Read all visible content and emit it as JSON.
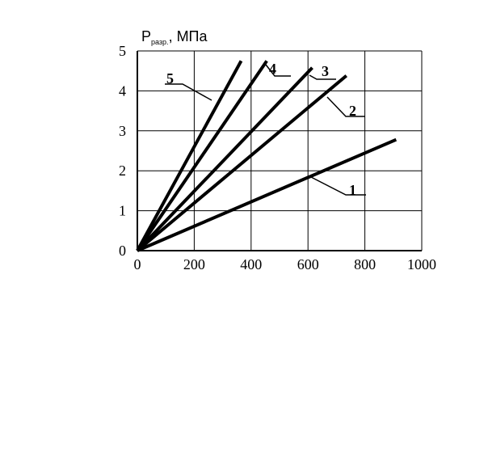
{
  "chart_data": {
    "type": "line",
    "title": "",
    "ylabel": {
      "main": "P",
      "subscript": "разр.",
      "unit": ", МПа"
    },
    "xlabel": "",
    "xlim": [
      0,
      1000
    ],
    "ylim": [
      0,
      5
    ],
    "grid": true,
    "x_ticks": [
      "0",
      "200",
      "400",
      "600",
      "800",
      "1000"
    ],
    "y_ticks": [
      "0",
      "1",
      "2",
      "3",
      "4",
      "5"
    ],
    "series": [
      {
        "name": "1",
        "x": [
          0,
          910
        ],
        "y": [
          0,
          2.78
        ]
      },
      {
        "name": "2",
        "x": [
          0,
          735
        ],
        "y": [
          0,
          4.38
        ]
      },
      {
        "name": "3",
        "x": [
          0,
          615
        ],
        "y": [
          0,
          4.58
        ]
      },
      {
        "name": "4",
        "x": [
          0,
          455
        ],
        "y": [
          0,
          4.75
        ]
      },
      {
        "name": "5",
        "x": [
          0,
          365
        ],
        "y": [
          0,
          4.75
        ]
      }
    ]
  }
}
